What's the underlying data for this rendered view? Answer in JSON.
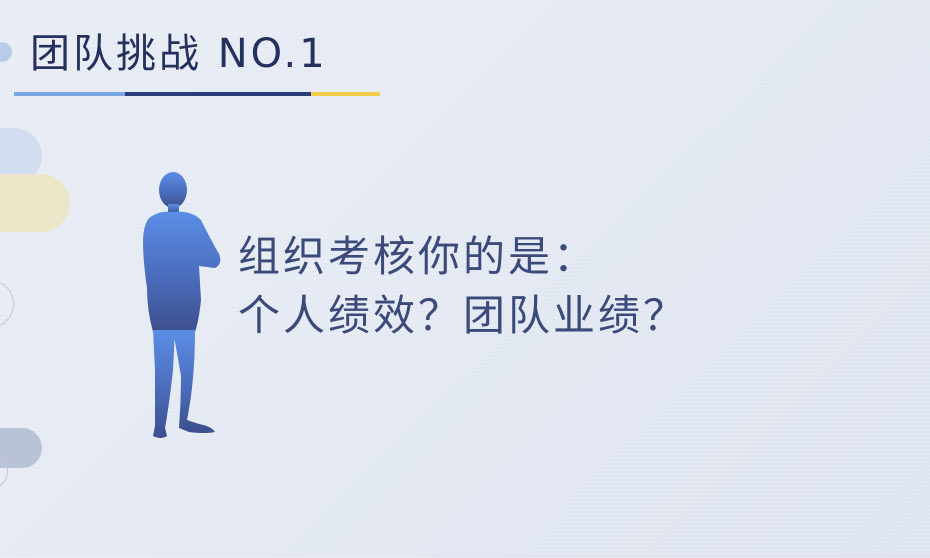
{
  "title": "团队挑战 NO.1",
  "question": {
    "line1": "组织考核你的是：",
    "line2": "个人绩效？团队业绩？"
  },
  "underline_colors": [
    "#7aa7e8",
    "#2c3e78",
    "#f2cc4c"
  ],
  "icons": {
    "figure": "standing-businessman-silhouette-icon"
  },
  "colors": {
    "title": "#24305e",
    "question_text": "#3b4a7a",
    "figure_top": "#5b8ee6",
    "figure_bottom": "#3d4f8c"
  }
}
